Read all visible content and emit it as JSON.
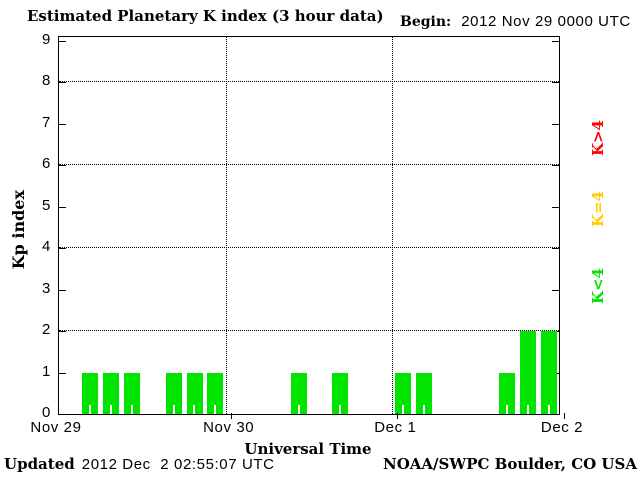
{
  "header": {
    "begin_label": "Begin:",
    "begin_value": "2012 Nov 29 0000 UTC"
  },
  "chart_data": {
    "type": "bar",
    "title": "Estimated Planetary K index (3 hour data)",
    "xlabel": "Universal Time",
    "ylabel": "Kp index",
    "ylim": [
      0,
      9
    ],
    "yticks": [
      0,
      1,
      2,
      3,
      4,
      5,
      6,
      7,
      8,
      9
    ],
    "grid_y": [
      2,
      4,
      6,
      8
    ],
    "grid": true,
    "x_interval_hours": 3,
    "x_start": "2012 Nov 29 0000 UTC",
    "bars_per_day": 8,
    "day_labels": [
      "Nov 29",
      "Nov 30",
      "Dec 1",
      "Dec 2"
    ],
    "values": [
      0,
      1,
      1,
      1,
      0,
      1,
      1,
      1,
      0,
      0,
      0,
      1,
      0,
      1,
      0,
      0,
      1,
      1,
      0,
      0,
      0,
      1,
      2,
      2
    ],
    "bar_color": "#00e400",
    "legend_position": "right",
    "legend": [
      {
        "label": "K>4",
        "color": "#ff0000"
      },
      {
        "label": "K=4",
        "color": "#ffcc00"
      },
      {
        "label": "K<4",
        "color": "#00e400"
      }
    ]
  },
  "footer": {
    "updated_label": "Updated",
    "updated_value": "2012 Dec  2 02:55:07 UTC",
    "credit": "NOAA/SWPC Boulder, CO USA"
  }
}
